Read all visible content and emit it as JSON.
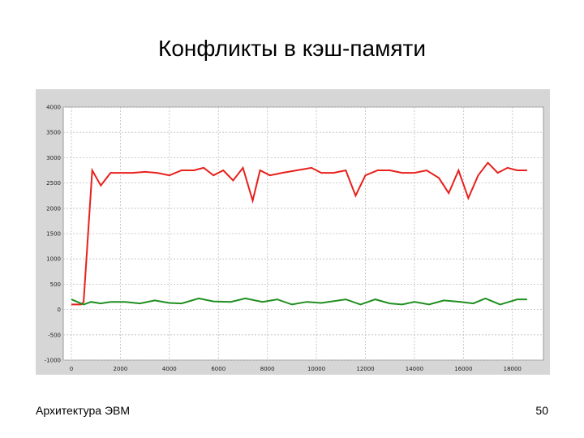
{
  "slide": {
    "title": "Конфликты в кэш-памяти",
    "footer_left": "Архитектура ЭВМ",
    "page_number": "50"
  },
  "chart_data": {
    "type": "line",
    "title": "",
    "xlabel": "",
    "ylabel": "",
    "xlim": [
      0,
      18000
    ],
    "ylim": [
      -1000,
      4000
    ],
    "x_ticks": [
      0,
      2000,
      4000,
      6000,
      8000,
      10000,
      12000,
      14000,
      16000,
      18000
    ],
    "x_tick_labels": [
      "0",
      "2000",
      "4000",
      "6000",
      "8000",
      "10000",
      "12000",
      "14000",
      "16000",
      "18000"
    ],
    "y_ticks": [
      4000,
      3500,
      3000,
      2500,
      2000,
      1500,
      1000,
      500,
      0,
      -500,
      -1000
    ],
    "y_tick_labels": [
      "4000",
      "3500",
      "3000",
      "2500",
      "2000",
      "1500",
      "1000",
      "500",
      "0",
      "-500",
      "-1000"
    ],
    "grid": true,
    "plot_background": "#ffffff",
    "frame_color": "#d6d6d6",
    "grid_color": "#bdbdbd",
    "series": [
      {
        "color": "#e8201c",
        "points": [
          [
            0,
            100
          ],
          [
            400,
            100
          ],
          [
            500,
            150
          ],
          [
            850,
            2750
          ],
          [
            1200,
            2450
          ],
          [
            1600,
            2700
          ],
          [
            2000,
            2700
          ],
          [
            2500,
            2700
          ],
          [
            3000,
            2720
          ],
          [
            3500,
            2700
          ],
          [
            4000,
            2650
          ],
          [
            4500,
            2750
          ],
          [
            5000,
            2750
          ],
          [
            5400,
            2800
          ],
          [
            5800,
            2650
          ],
          [
            6200,
            2750
          ],
          [
            6600,
            2550
          ],
          [
            7000,
            2800
          ],
          [
            7400,
            2150
          ],
          [
            7700,
            2750
          ],
          [
            8100,
            2650
          ],
          [
            8600,
            2700
          ],
          [
            9200,
            2750
          ],
          [
            9800,
            2800
          ],
          [
            10200,
            2700
          ],
          [
            10700,
            2700
          ],
          [
            11200,
            2750
          ],
          [
            11600,
            2250
          ],
          [
            12000,
            2650
          ],
          [
            12500,
            2750
          ],
          [
            13000,
            2750
          ],
          [
            13500,
            2700
          ],
          [
            14000,
            2700
          ],
          [
            14500,
            2750
          ],
          [
            15000,
            2600
          ],
          [
            15400,
            2300
          ],
          [
            15800,
            2750
          ],
          [
            16200,
            2200
          ],
          [
            16600,
            2650
          ],
          [
            17000,
            2900
          ],
          [
            17400,
            2700
          ],
          [
            17800,
            2800
          ],
          [
            18200,
            2750
          ],
          [
            18600,
            2750
          ]
        ]
      },
      {
        "color": "#1f8f1f",
        "points": [
          [
            0,
            200
          ],
          [
            500,
            100
          ],
          [
            800,
            150
          ],
          [
            1200,
            120
          ],
          [
            1600,
            150
          ],
          [
            2200,
            150
          ],
          [
            2800,
            120
          ],
          [
            3400,
            180
          ],
          [
            4000,
            130
          ],
          [
            4500,
            120
          ],
          [
            5200,
            220
          ],
          [
            5800,
            160
          ],
          [
            6500,
            150
          ],
          [
            7100,
            220
          ],
          [
            7800,
            150
          ],
          [
            8400,
            200
          ],
          [
            9000,
            100
          ],
          [
            9600,
            150
          ],
          [
            10200,
            130
          ],
          [
            11200,
            200
          ],
          [
            11800,
            100
          ],
          [
            12400,
            200
          ],
          [
            13000,
            120
          ],
          [
            13500,
            100
          ],
          [
            14000,
            150
          ],
          [
            14600,
            100
          ],
          [
            15200,
            180
          ],
          [
            15900,
            150
          ],
          [
            16400,
            120
          ],
          [
            16900,
            220
          ],
          [
            17500,
            100
          ],
          [
            18200,
            200
          ],
          [
            18600,
            200
          ]
        ]
      }
    ]
  }
}
